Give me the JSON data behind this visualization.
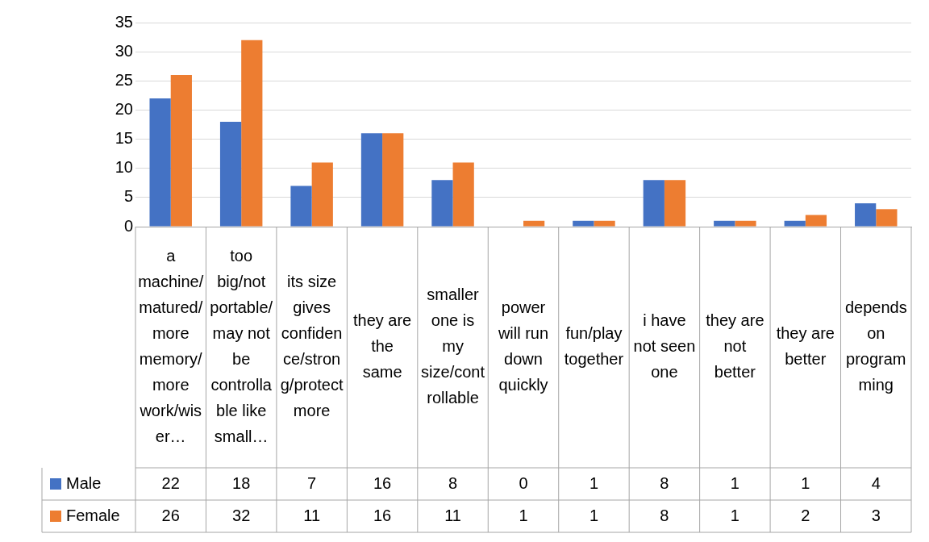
{
  "chart_data": {
    "type": "bar",
    "categories": [
      "a machine/matured/more memory/more work/wiser…",
      "too big/not portable/may not be controllable like small…",
      "its size gives confidence/strong/protect more",
      "they are the same",
      "smaller one is my size/controllable",
      "power will run down quickly",
      "fun/play together",
      "i have not seen one",
      "they are not better",
      "they are better",
      "depends on programming"
    ],
    "series": [
      {
        "name": "Male",
        "color": "#4472c4",
        "values": [
          22,
          18,
          7,
          16,
          8,
          0,
          1,
          8,
          1,
          1,
          4
        ]
      },
      {
        "name": "Female",
        "color": "#ed7d31",
        "values": [
          26,
          32,
          11,
          16,
          11,
          1,
          1,
          8,
          1,
          2,
          3
        ]
      }
    ],
    "ylim": [
      0,
      35
    ],
    "yticks": [
      0,
      5,
      10,
      15,
      20,
      25,
      30,
      35
    ],
    "grid": "y",
    "legend": "bottom",
    "data_labels": true
  }
}
